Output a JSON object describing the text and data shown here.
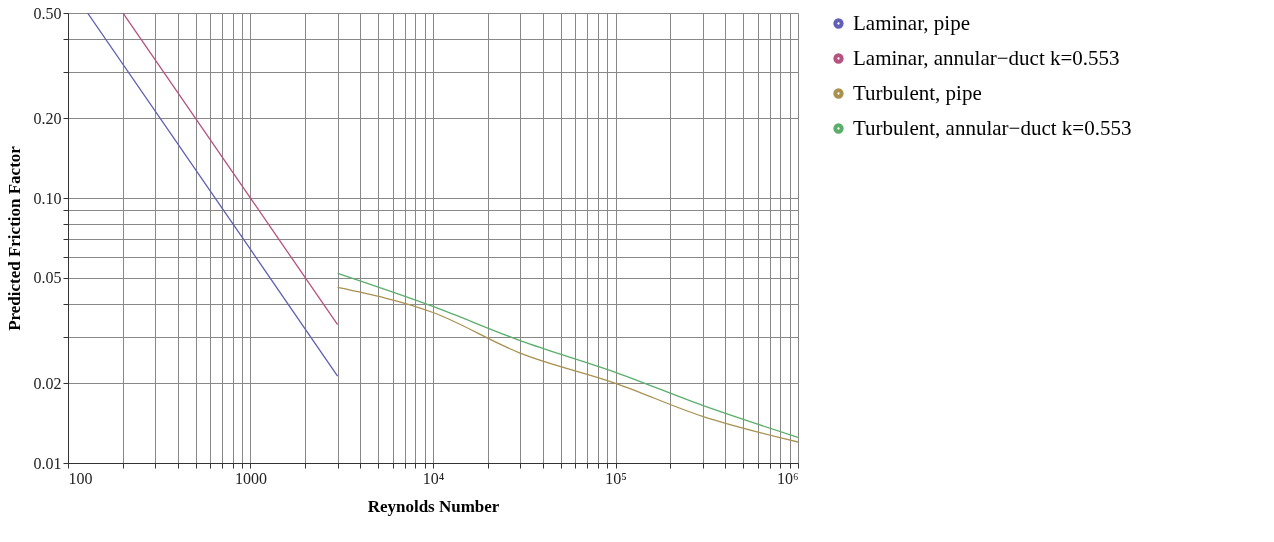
{
  "chart_data": {
    "type": "line",
    "xlabel": "Reynolds Number",
    "ylabel": "Predicted Friction Factor",
    "log": "xy",
    "grid": true,
    "legend": "right",
    "marker": "none",
    "line_style": "solid",
    "xlim": [
      100,
      1000000
    ],
    "ylim": [
      0.01,
      0.5
    ],
    "xticks": [
      100,
      {
        "value": 200,
        "label": null
      },
      {
        "value": 300,
        "label": null
      },
      {
        "value": 400,
        "label": null
      },
      {
        "value": 500,
        "label": null
      },
      {
        "value": 600,
        "label": null
      },
      {
        "value": 700,
        "label": null
      },
      {
        "value": 800,
        "label": null
      },
      {
        "value": 900,
        "label": null
      },
      1000,
      {
        "value": 2000,
        "label": null
      },
      {
        "value": 3000,
        "label": null
      },
      {
        "value": 4000,
        "label": null
      },
      {
        "value": 5000,
        "label": null
      },
      {
        "value": 6000,
        "label": null
      },
      {
        "value": 7000,
        "label": null
      },
      {
        "value": 8000,
        "label": null
      },
      {
        "value": 9000,
        "label": null
      },
      {
        "value": 10000,
        "label": "10⁴"
      },
      {
        "value": 20000,
        "label": null
      },
      {
        "value": 30000,
        "label": null
      },
      {
        "value": 40000,
        "label": null
      },
      {
        "value": 50000,
        "label": null
      },
      {
        "value": 60000,
        "label": null
      },
      {
        "value": 70000,
        "label": null
      },
      {
        "value": 80000,
        "label": null
      },
      {
        "value": 90000,
        "label": null
      },
      {
        "value": 100000,
        "label": "10⁵"
      },
      {
        "value": 200000,
        "label": null
      },
      {
        "value": 300000,
        "label": null
      },
      {
        "value": 400000,
        "label": null
      },
      {
        "value": 500000,
        "label": null
      },
      {
        "value": 600000,
        "label": null
      },
      {
        "value": 700000,
        "label": null
      },
      {
        "value": 800000,
        "label": null
      },
      {
        "value": 900000,
        "label": null
      },
      {
        "value": 1000000,
        "label": "10⁶"
      }
    ],
    "yticks": [
      {
        "value": 0.01,
        "label": "0.01"
      },
      {
        "value": 0.02,
        "label": "0.02"
      },
      {
        "value": 0.03,
        "label": null
      },
      {
        "value": 0.04,
        "label": null
      },
      {
        "value": 0.05,
        "label": "0.05"
      },
      {
        "value": 0.06,
        "label": null
      },
      {
        "value": 0.07,
        "label": null
      },
      {
        "value": 0.08,
        "label": null
      },
      {
        "value": 0.09,
        "label": null
      },
      {
        "value": 0.1,
        "label": "0.10"
      },
      {
        "value": 0.2,
        "label": "0.20"
      },
      {
        "value": 0.3,
        "label": null
      },
      {
        "value": 0.4,
        "label": null
      },
      {
        "value": 0.5,
        "label": "0.50"
      }
    ],
    "series": [
      {
        "name": "Laminar, pipe",
        "color": "#5f5fb5",
        "x": [
          128,
          1000,
          3000
        ],
        "values": [
          0.5,
          0.064,
          0.0213
        ]
      },
      {
        "name": "Laminar, annular−duct k=0.553",
        "color": "#b5527f",
        "x": [
          200,
          1000,
          3000
        ],
        "values": [
          0.5,
          0.1,
          0.0333
        ]
      },
      {
        "name": "Turbulent, pipe",
        "color": "#a8914f",
        "x": [
          3000,
          10000,
          30000,
          100000,
          300000,
          1000000
        ],
        "values": [
          0.046,
          0.037,
          0.026,
          0.02,
          0.015,
          0.012
        ]
      },
      {
        "name": "Turbulent, annular−duct k=0.553",
        "color": "#5aae6a",
        "x": [
          3000,
          10000,
          30000,
          100000,
          300000,
          1000000
        ],
        "values": [
          0.052,
          0.039,
          0.029,
          0.022,
          0.0165,
          0.0125
        ]
      }
    ]
  }
}
